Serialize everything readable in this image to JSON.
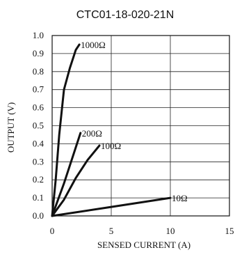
{
  "chart_data": {
    "type": "line",
    "title": "CTC01-18-020-21N",
    "xlabel": "SENSED CURRENT (A)",
    "ylabel": "OUTPUT (V)",
    "xlim": [
      0,
      15
    ],
    "ylim": [
      0,
      1.0
    ],
    "x_ticks": [
      "0",
      "5",
      "10",
      "15"
    ],
    "y_ticks": [
      "0.0",
      "0.1",
      "0.2",
      "0.3",
      "0.4",
      "0.5",
      "0.6",
      "0.7",
      "0.8",
      "0.9",
      "1.0"
    ],
    "grid": true,
    "colors": {
      "line": "#111111",
      "grid": "#222222"
    },
    "series": [
      {
        "name": "1000Ω",
        "points": [
          [
            0,
            0
          ],
          [
            0.3,
            0.2
          ],
          [
            0.6,
            0.45
          ],
          [
            1.0,
            0.7
          ],
          [
            1.5,
            0.82
          ],
          [
            2.0,
            0.92
          ],
          [
            2.3,
            0.95
          ]
        ]
      },
      {
        "name": "200Ω",
        "points": [
          [
            0,
            0
          ],
          [
            1.0,
            0.18
          ],
          [
            2.0,
            0.38
          ],
          [
            2.4,
            0.46
          ]
        ]
      },
      {
        "name": "100Ω",
        "points": [
          [
            0,
            0
          ],
          [
            1.0,
            0.09
          ],
          [
            2.0,
            0.21
          ],
          [
            3.0,
            0.31
          ],
          [
            4.0,
            0.39
          ]
        ]
      },
      {
        "name": "10Ω",
        "points": [
          [
            0,
            0
          ],
          [
            5.0,
            0.05
          ],
          [
            10.0,
            0.1
          ]
        ]
      }
    ]
  }
}
